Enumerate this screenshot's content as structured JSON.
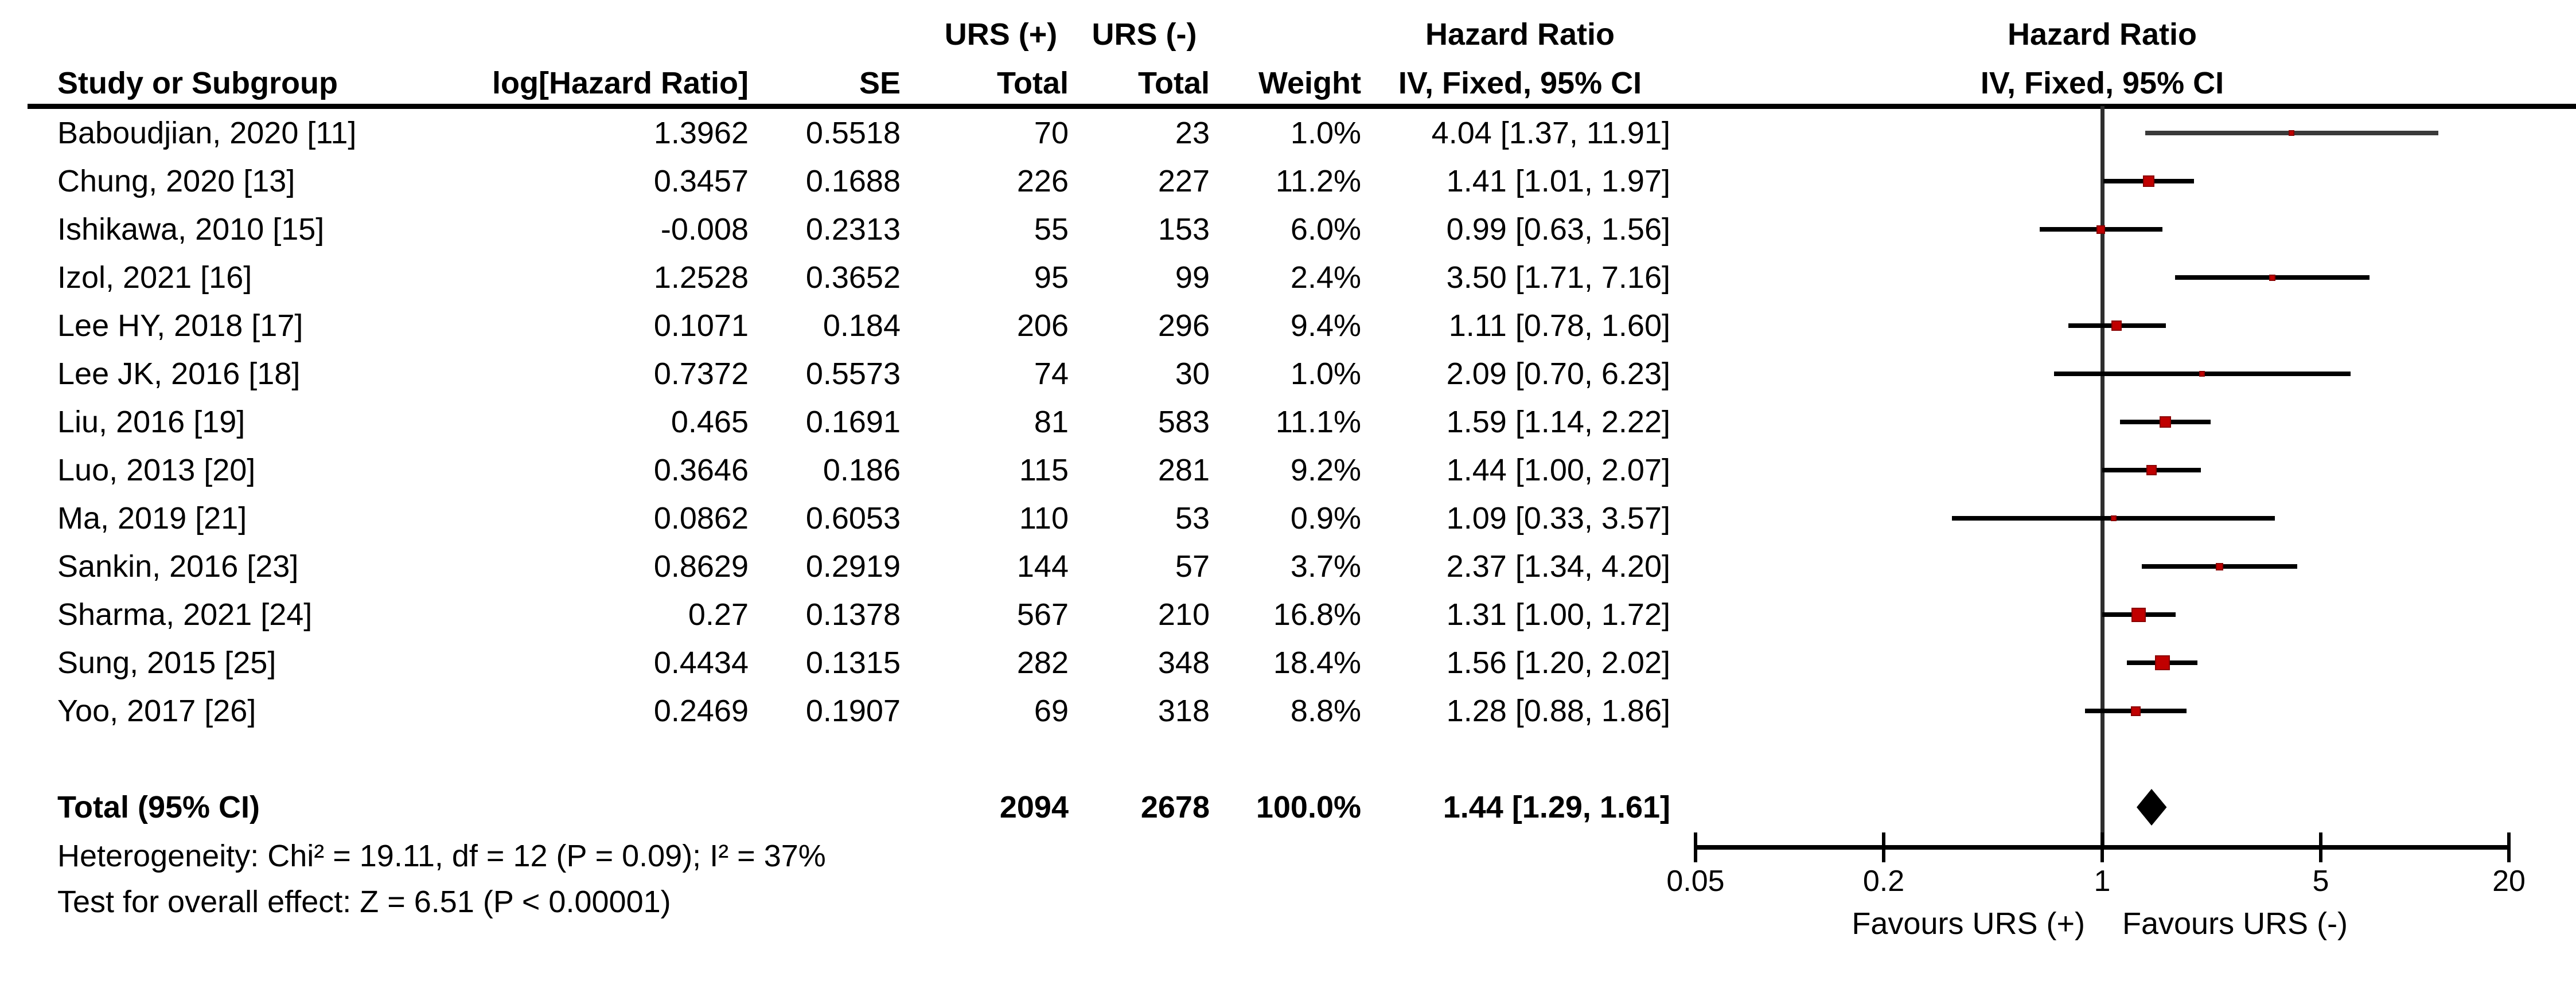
{
  "chart_data": {
    "type": "forest",
    "scale": "log",
    "axis": {
      "min": 0.05,
      "max": 20,
      "ticks": [
        {
          "value": 0.05,
          "label": "0.05"
        },
        {
          "value": 0.2,
          "label": "0.2"
        },
        {
          "value": 1,
          "label": "1"
        },
        {
          "value": 5,
          "label": "5"
        },
        {
          "value": 20,
          "label": "20"
        }
      ],
      "favours_left": "Favours URS (+)",
      "favours_right": "Favours URS (-)"
    },
    "header": {
      "study_or_subgroup": "Study or Subgroup",
      "log_hazard_ratio": "log[Hazard Ratio]",
      "se": "SE",
      "urs_pos": "URS (+)",
      "urs_neg": "URS (-)",
      "total": "Total",
      "weight": "Weight",
      "hazard_ratio": "Hazard Ratio",
      "method": "IV, Fixed, 95% CI"
    },
    "studies": [
      {
        "name": "Baboudjian, 2020 [11]",
        "log_hr": "1.3962",
        "se": "0.5518",
        "total_pos": "70",
        "total_neg": "23",
        "weight": "1.0%",
        "weight_pct": 1.0,
        "hr_ci": "4.04 [1.37, 11.91]",
        "hr": 4.04,
        "lo": 1.37,
        "hi": 11.91,
        "line_color": "#3a3a3a"
      },
      {
        "name": "Chung, 2020 [13]",
        "log_hr": "0.3457",
        "se": "0.1688",
        "total_pos": "226",
        "total_neg": "227",
        "weight": "11.2%",
        "weight_pct": 11.2,
        "hr_ci": "1.41 [1.01, 1.97]",
        "hr": 1.41,
        "lo": 1.01,
        "hi": 1.97
      },
      {
        "name": "Ishikawa, 2010 [15]",
        "log_hr": "-0.008",
        "se": "0.2313",
        "total_pos": "55",
        "total_neg": "153",
        "weight": "6.0%",
        "weight_pct": 6.0,
        "hr_ci": "0.99 [0.63, 1.56]",
        "hr": 0.99,
        "lo": 0.63,
        "hi": 1.56
      },
      {
        "name": "Izol, 2021 [16]",
        "log_hr": "1.2528",
        "se": "0.3652",
        "total_pos": "95",
        "total_neg": "99",
        "weight": "2.4%",
        "weight_pct": 2.4,
        "hr_ci": "3.50 [1.71, 7.16]",
        "hr": 3.5,
        "lo": 1.71,
        "hi": 7.16
      },
      {
        "name": "Lee HY, 2018 [17]",
        "log_hr": "0.1071",
        "se": "0.184",
        "total_pos": "206",
        "total_neg": "296",
        "weight": "9.4%",
        "weight_pct": 9.4,
        "hr_ci": "1.11 [0.78, 1.60]",
        "hr": 1.11,
        "lo": 0.78,
        "hi": 1.6
      },
      {
        "name": "Lee JK, 2016 [18]",
        "log_hr": "0.7372",
        "se": "0.5573",
        "total_pos": "74",
        "total_neg": "30",
        "weight": "1.0%",
        "weight_pct": 1.0,
        "hr_ci": "2.09 [0.70, 6.23]",
        "hr": 2.09,
        "lo": 0.7,
        "hi": 6.23
      },
      {
        "name": "Liu, 2016 [19]",
        "log_hr": "0.465",
        "se": "0.1691",
        "total_pos": "81",
        "total_neg": "583",
        "weight": "11.1%",
        "weight_pct": 11.1,
        "hr_ci": "1.59 [1.14, 2.22]",
        "hr": 1.59,
        "lo": 1.14,
        "hi": 2.22
      },
      {
        "name": "Luo, 2013 [20]",
        "log_hr": "0.3646",
        "se": "0.186",
        "total_pos": "115",
        "total_neg": "281",
        "weight": "9.2%",
        "weight_pct": 9.2,
        "hr_ci": "1.44 [1.00, 2.07]",
        "hr": 1.44,
        "lo": 1.0,
        "hi": 2.07
      },
      {
        "name": "Ma, 2019 [21]",
        "log_hr": "0.0862",
        "se": "0.6053",
        "total_pos": "110",
        "total_neg": "53",
        "weight": "0.9%",
        "weight_pct": 0.9,
        "hr_ci": "1.09 [0.33, 3.57]",
        "hr": 1.09,
        "lo": 0.33,
        "hi": 3.57
      },
      {
        "name": "Sankin, 2016 [23]",
        "log_hr": "0.8629",
        "se": "0.2919",
        "total_pos": "144",
        "total_neg": "57",
        "weight": "3.7%",
        "weight_pct": 3.7,
        "hr_ci": "2.37 [1.34, 4.20]",
        "hr": 2.37,
        "lo": 1.34,
        "hi": 4.2
      },
      {
        "name": "Sharma, 2021 [24]",
        "log_hr": "0.27",
        "se": "0.1378",
        "total_pos": "567",
        "total_neg": "210",
        "weight": "16.8%",
        "weight_pct": 16.8,
        "hr_ci": "1.31 [1.00, 1.72]",
        "hr": 1.31,
        "lo": 1.0,
        "hi": 1.72
      },
      {
        "name": "Sung, 2015 [25]",
        "log_hr": "0.4434",
        "se": "0.1315",
        "total_pos": "282",
        "total_neg": "348",
        "weight": "18.4%",
        "weight_pct": 18.4,
        "hr_ci": "1.56 [1.20, 2.02]",
        "hr": 1.56,
        "lo": 1.2,
        "hi": 2.02
      },
      {
        "name": "Yoo, 2017 [26]",
        "log_hr": "0.2469",
        "se": "0.1907",
        "total_pos": "69",
        "total_neg": "318",
        "weight": "8.8%",
        "weight_pct": 8.8,
        "hr_ci": "1.28 [0.88, 1.86]",
        "hr": 1.28,
        "lo": 0.88,
        "hi": 1.86
      }
    ],
    "total": {
      "label": "Total (95% CI)",
      "total_pos": "2094",
      "total_neg": "2678",
      "weight": "100.0%",
      "hr_ci": "1.44 [1.29, 1.61]",
      "hr": 1.44,
      "lo": 1.29,
      "hi": 1.61
    },
    "footer": {
      "heterogeneity": "Heterogeneity: Chi² = 19.11, df = 12 (P = 0.09); I² = 37%",
      "overall_effect": "Test for overall effect: Z = 6.51 (P < 0.00001)"
    },
    "colors": {
      "marker_fill": "#c00000",
      "marker_border": "#8a0000",
      "ci_line": "#000000",
      "diamond": "#000000",
      "axis": "#000000"
    }
  }
}
